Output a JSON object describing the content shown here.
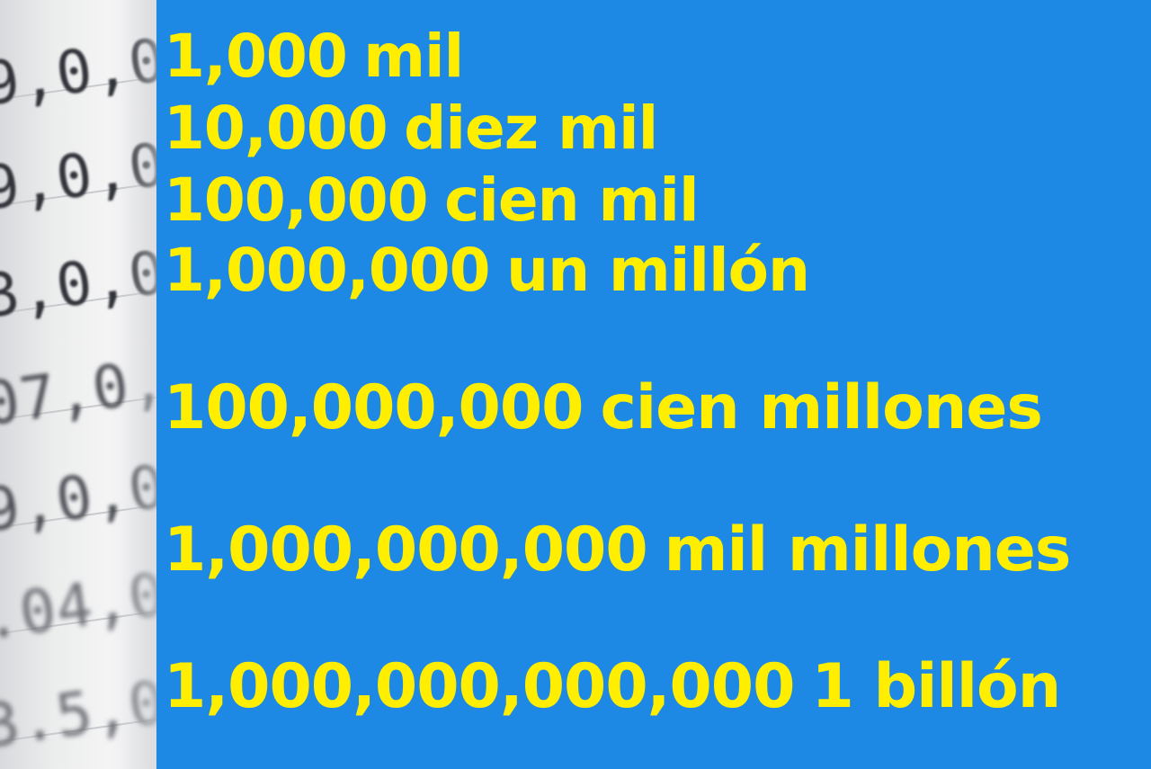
{
  "background_color": "#1e88e5",
  "text_color": "#ffee00",
  "photo_strip": {
    "digit_rows": [
      "9,0,0,",
      "9,0,0",
      "3,0,0,",
      "07,0,0",
      "9,0,0",
      ".04,0",
      "3.5,0"
    ]
  },
  "lines": [
    {
      "number": "1,000",
      "words": "mil"
    },
    {
      "number": "10,000",
      "words": "diez mil"
    },
    {
      "number": "100,000",
      "words": "cien mil"
    },
    {
      "number": "1,000,000",
      "words": "un millón"
    },
    {
      "number": "100,000,000",
      "words": "cien millones"
    },
    {
      "number": "1,000,000,000",
      "words": "mil millones"
    },
    {
      "number": "1,000,000,000,000",
      "words": "1 billón"
    }
  ]
}
